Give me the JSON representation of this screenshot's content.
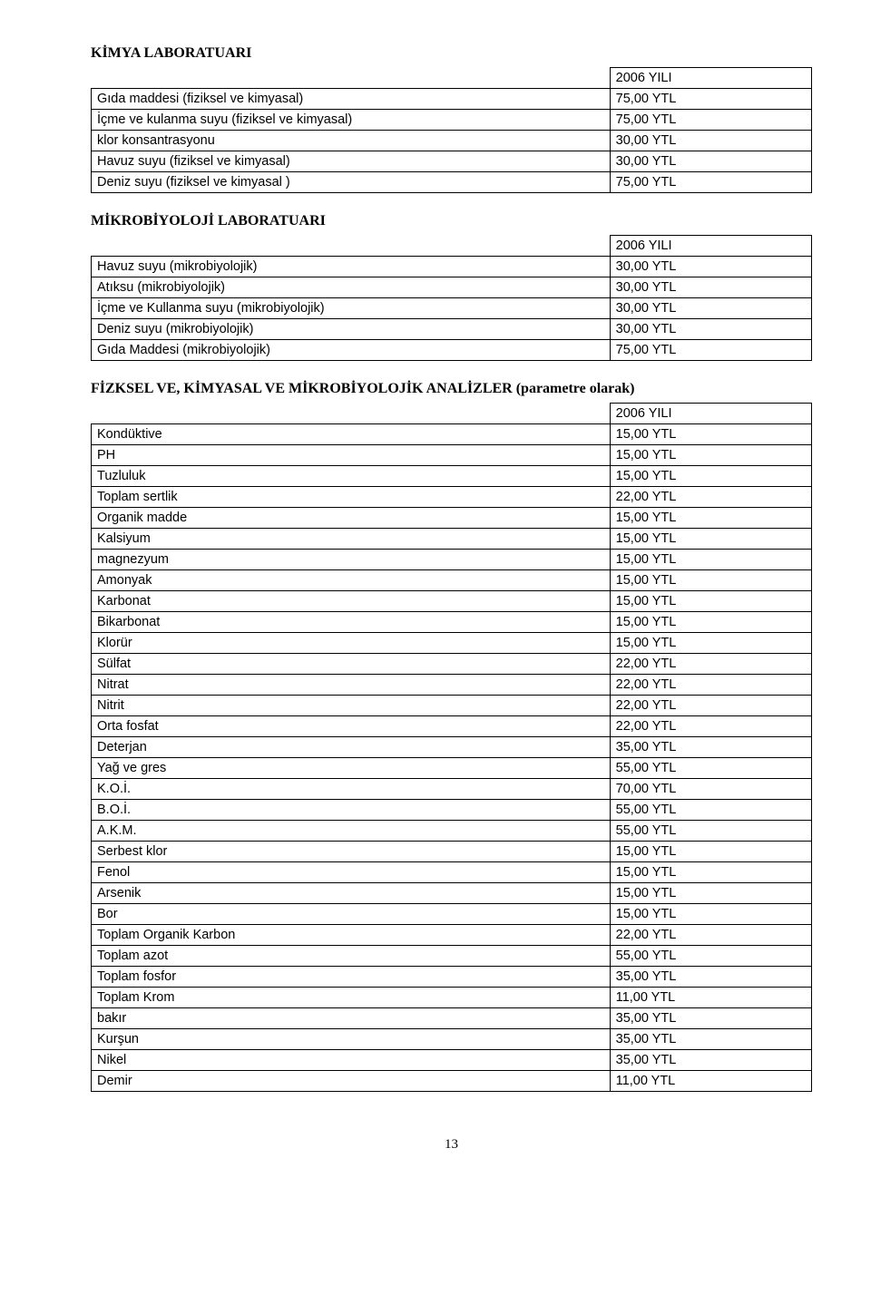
{
  "pageNumber": "13",
  "sections": [
    {
      "heading": "KİMYA LABORATUARI",
      "yearHeader": "2006 YILI",
      "rows": [
        {
          "label": "Gıda maddesi (fiziksel ve kimyasal)",
          "value": "75,00 YTL"
        },
        {
          "label": "İçme ve kulanma suyu (fiziksel ve kimyasal)",
          "value": "75,00 YTL"
        },
        {
          "label": "klor konsantrasyonu",
          "value": "30,00 YTL"
        },
        {
          "label": "Havuz suyu (fiziksel ve kimyasal)",
          "value": "30,00 YTL"
        },
        {
          "label": "Deniz suyu (fiziksel ve kimyasal )",
          "value": "75,00 YTL"
        }
      ]
    },
    {
      "heading": "MİKROBİYOLOJİ LABORATUARI",
      "yearHeader": "2006 YILI",
      "rows": [
        {
          "label": "Havuz suyu (mikrobiyolojik)",
          "value": "30,00 YTL"
        },
        {
          "label": "Atıksu (mikrobiyolojik)",
          "value": "30,00 YTL"
        },
        {
          "label": "İçme ve Kullanma suyu (mikrobiyolojik)",
          "value": "30,00 YTL"
        },
        {
          "label": "Deniz suyu (mikrobiyolojik)",
          "value": "30,00 YTL"
        },
        {
          "label": "Gıda Maddesi (mikrobiyolojik)",
          "value": "75,00 YTL"
        }
      ]
    },
    {
      "heading": "FİZKSEL VE, KİMYASAL VE MİKROBİYOLOJİK ANALİZLER (parametre olarak)",
      "yearHeader": "2006 YILI",
      "rows": [
        {
          "label": "Kondüktive",
          "value": "15,00 YTL"
        },
        {
          "label": "PH",
          "value": "15,00 YTL"
        },
        {
          "label": "Tuzluluk",
          "value": "15,00 YTL"
        },
        {
          "label": "Toplam sertlik",
          "value": "22,00 YTL"
        },
        {
          "label": "Organik madde",
          "value": "15,00 YTL"
        },
        {
          "label": "Kalsiyum",
          "value": "15,00 YTL"
        },
        {
          "label": "magnezyum",
          "value": "15,00 YTL"
        },
        {
          "label": "Amonyak",
          "value": "15,00 YTL"
        },
        {
          "label": "Karbonat",
          "value": "15,00 YTL"
        },
        {
          "label": "Bikarbonat",
          "value": "15,00 YTL"
        },
        {
          "label": "Klorür",
          "value": "15,00 YTL"
        },
        {
          "label": "Sülfat",
          "value": "22,00 YTL"
        },
        {
          "label": "Nitrat",
          "value": "22,00 YTL"
        },
        {
          "label": "Nitrit",
          "value": "22,00 YTL"
        },
        {
          "label": "Orta fosfat",
          "value": "22,00 YTL"
        },
        {
          "label": "Deterjan",
          "value": "35,00 YTL"
        },
        {
          "label": "Yağ ve gres",
          "value": "55,00 YTL"
        },
        {
          "label": "K.O.İ.",
          "value": "70,00 YTL"
        },
        {
          "label": "B.O.İ.",
          "value": "55,00 YTL"
        },
        {
          "label": "A.K.M.",
          "value": "55,00 YTL"
        },
        {
          "label": "Serbest klor",
          "value": "15,00 YTL"
        },
        {
          "label": "Fenol",
          "value": "15,00 YTL"
        },
        {
          "label": "Arsenik",
          "value": "15,00 YTL"
        },
        {
          "label": "Bor",
          "value": "15,00 YTL"
        },
        {
          "label": "Toplam Organik Karbon",
          "value": "22,00 YTL"
        },
        {
          "label": "Toplam azot",
          "value": "55,00 YTL"
        },
        {
          "label": "Toplam fosfor",
          "value": "35,00 YTL"
        },
        {
          "label": "Toplam Krom",
          "value": "11,00 YTL"
        },
        {
          "label": "bakır",
          "value": "35,00 YTL"
        },
        {
          "label": "Kurşun",
          "value": "35,00 YTL"
        },
        {
          "label": "Nikel",
          "value": "35,00 YTL"
        },
        {
          "label": "Demir",
          "value": "11,00 YTL"
        }
      ]
    }
  ]
}
